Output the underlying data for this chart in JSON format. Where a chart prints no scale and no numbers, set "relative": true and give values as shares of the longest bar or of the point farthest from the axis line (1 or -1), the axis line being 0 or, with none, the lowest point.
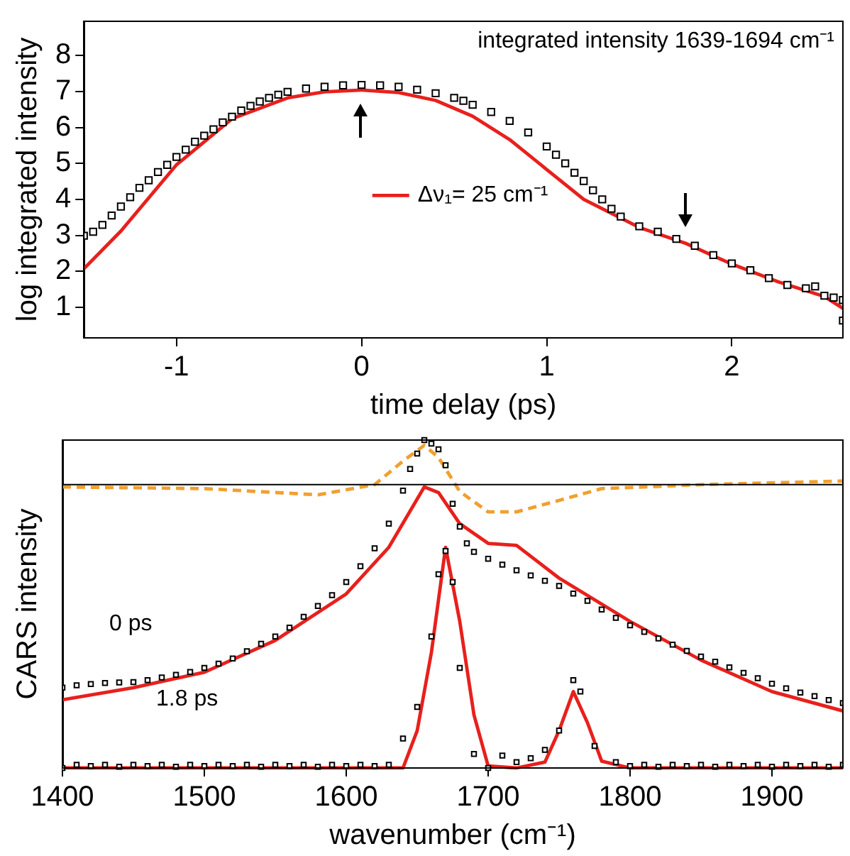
{
  "chart_data": [
    {
      "type": "scatter",
      "xlabel": "time delay (ps)",
      "ylabel": "log integrated intensity",
      "xlim": [
        -1.5,
        2.6
      ],
      "ylim": [
        0.15,
        8.95
      ],
      "xticks": [
        -1,
        0,
        1,
        2
      ],
      "yticks": [
        1,
        2,
        3,
        4,
        5,
        6,
        7,
        8
      ],
      "grid": false,
      "legend": "center",
      "annotations": [
        "integrated intensity 1639-1694 cm⁻¹"
      ],
      "series": [
        {
          "type": "scatter",
          "marker": "square",
          "color": "#000000",
          "x": [
            -1.5,
            -1.45,
            -1.4,
            -1.35,
            -1.3,
            -1.25,
            -1.2,
            -1.15,
            -1.1,
            -1.05,
            -1.0,
            -0.95,
            -0.9,
            -0.85,
            -0.8,
            -0.75,
            -0.7,
            -0.65,
            -0.6,
            -0.55,
            -0.5,
            -0.45,
            -0.4,
            -0.3,
            -0.2,
            -0.1,
            0,
            0.1,
            0.2,
            0.3,
            0.4,
            0.5,
            0.55,
            0.6,
            0.7,
            0.8,
            0.9,
            1.0,
            1.05,
            1.1,
            1.15,
            1.2,
            1.25,
            1.3,
            1.35,
            1.4,
            1.5,
            1.6,
            1.7,
            1.8,
            1.9,
            2.0,
            2.1,
            2.2,
            2.3,
            2.4,
            2.45,
            2.5,
            2.55,
            2.6,
            2.6
          ],
          "values": [
            2.99,
            3.1,
            3.29,
            3.55,
            3.8,
            4.06,
            4.32,
            4.53,
            4.76,
            4.96,
            5.18,
            5.38,
            5.6,
            5.77,
            5.95,
            6.14,
            6.3,
            6.47,
            6.6,
            6.72,
            6.82,
            6.91,
            6.99,
            7.08,
            7.13,
            7.17,
            7.18,
            7.17,
            7.13,
            7.05,
            6.95,
            6.82,
            6.74,
            6.63,
            6.43,
            6.18,
            5.86,
            5.47,
            5.24,
            5.0,
            4.74,
            4.51,
            4.25,
            4.0,
            3.74,
            3.52,
            3.25,
            3.1,
            2.9,
            2.71,
            2.45,
            2.22,
            2.03,
            1.81,
            1.62,
            1.53,
            1.58,
            1.32,
            1.27,
            1.2,
            0.63
          ]
        },
        {
          "type": "line",
          "marker": "none",
          "name": "Δν₁= 25 cm⁻¹",
          "color": "#e8201c",
          "x": [
            -1.5,
            -1.3,
            -1.0,
            -0.7,
            -0.4,
            -0.2,
            0,
            0.2,
            0.4,
            0.6,
            0.8,
            1.0,
            1.2,
            1.35,
            1.5,
            1.75,
            2.0,
            2.25,
            2.5,
            2.6
          ],
          "values": [
            2.07,
            3.12,
            4.96,
            6.24,
            6.82,
            6.99,
            7.04,
            6.97,
            6.75,
            6.31,
            5.66,
            4.83,
            4.0,
            3.61,
            3.22,
            2.78,
            2.2,
            1.71,
            1.3,
            0.97
          ]
        }
      ]
    },
    {
      "type": "scatter",
      "xlabel": "wavenumber (cm⁻¹)",
      "ylabel": "CARS intensity",
      "relative": true,
      "xlim": [
        1400,
        1950
      ],
      "xticks": [
        1400,
        1500,
        1600,
        1700,
        1800,
        1900
      ],
      "grid": false,
      "annotations": [
        "0 ps",
        "1.8 ps"
      ],
      "series": [
        {
          "type": "scatter",
          "marker": "square",
          "color": "#000000",
          "x": [
            1400,
            1410,
            1420,
            1430,
            1440,
            1450,
            1460,
            1470,
            1480,
            1490,
            1500,
            1510,
            1520,
            1530,
            1540,
            1550,
            1560,
            1570,
            1580,
            1590,
            1600,
            1610,
            1620,
            1630,
            1640,
            1645,
            1650,
            1655,
            1660,
            1665,
            1670,
            1675,
            1680,
            1685,
            1690,
            1700,
            1710,
            1720,
            1730,
            1740,
            1750,
            1760,
            1770,
            1780,
            1790,
            1800,
            1810,
            1820,
            1830,
            1840,
            1850,
            1860,
            1870,
            1880,
            1890,
            1900,
            1910,
            1920,
            1930,
            1940,
            1950
          ],
          "values": [
            0.245,
            0.252,
            0.256,
            0.259,
            0.261,
            0.262,
            0.268,
            0.276,
            0.284,
            0.293,
            0.305,
            0.318,
            0.334,
            0.356,
            0.379,
            0.401,
            0.428,
            0.461,
            0.494,
            0.527,
            0.567,
            0.615,
            0.67,
            0.745,
            0.846,
            0.912,
            0.959,
            1,
            0.989,
            0.972,
            0.923,
            0.806,
            0.736,
            0.685,
            0.659,
            0.638,
            0.62,
            0.603,
            0.587,
            0.571,
            0.555,
            0.532,
            0.51,
            0.483,
            0.458,
            0.435,
            0.415,
            0.395,
            0.376,
            0.357,
            0.34,
            0.324,
            0.307,
            0.29,
            0.274,
            0.257,
            0.243,
            0.23,
            0.219,
            0.207,
            0.198
          ]
        },
        {
          "type": "line",
          "marker": "none",
          "color": "#e8201c",
          "x": [
            1400,
            1450,
            1500,
            1550,
            1600,
            1630,
            1655,
            1665,
            1680,
            1700,
            1720,
            1750,
            1800,
            1850,
            1900,
            1950
          ],
          "values": [
            0.208,
            0.245,
            0.292,
            0.389,
            0.531,
            0.673,
            0.857,
            0.84,
            0.745,
            0.685,
            0.679,
            0.579,
            0.447,
            0.329,
            0.233,
            0.174
          ]
        },
        {
          "type": "scatter",
          "marker": "square",
          "color": "#000000",
          "x": [
            1400,
            1410,
            1420,
            1430,
            1440,
            1450,
            1460,
            1470,
            1480,
            1490,
            1500,
            1510,
            1520,
            1530,
            1540,
            1550,
            1560,
            1570,
            1580,
            1590,
            1600,
            1610,
            1620,
            1630,
            1640,
            1650,
            1660,
            1665,
            1670,
            1675,
            1680,
            1690,
            1700,
            1710,
            1720,
            1730,
            1740,
            1750,
            1760,
            1765,
            1775,
            1790,
            1800,
            1810,
            1820,
            1830,
            1840,
            1850,
            1860,
            1870,
            1880,
            1890,
            1900,
            1910,
            1920,
            1930,
            1940,
            1950
          ],
          "values": [
            0,
            0.01,
            0.006,
            0.01,
            0.004,
            0.01,
            0.006,
            0.01,
            0.004,
            0.01,
            0.006,
            0.01,
            0.006,
            0.01,
            0.004,
            0.01,
            0.006,
            0.01,
            0.004,
            0.01,
            0.006,
            0.01,
            0.006,
            0.01,
            0.09,
            0.186,
            0.401,
            0.591,
            0.662,
            0.567,
            0.305,
            0.043,
            0,
            0.038,
            0.018,
            0.03,
            0.055,
            0.114,
            0.268,
            0.233,
            0.067,
            0.018,
            0.006,
            0.01,
            0.004,
            0.01,
            0.006,
            0.01,
            0.004,
            0.01,
            0.006,
            0.01,
            0.004,
            0.01,
            0.006,
            0.01,
            0.004,
            0.01
          ]
        },
        {
          "type": "line",
          "marker": "none",
          "color": "#e8201c",
          "x": [
            1400,
            1500,
            1600,
            1640,
            1650,
            1660,
            1670,
            1680,
            1690,
            1700,
            1720,
            1740,
            1750,
            1760,
            1770,
            1780,
            1800,
            1950
          ],
          "values": [
            0,
            0,
            0,
            0,
            0.114,
            0.352,
            0.673,
            0.447,
            0.162,
            0.006,
            0,
            0.018,
            0.114,
            0.233,
            0.138,
            0.021,
            0,
            0
          ]
        },
        {
          "type": "line",
          "marker": "none",
          "color": "#000000",
          "x": [
            1400,
            1950
          ],
          "values": [
            0.864,
            0.864
          ]
        },
        {
          "type": "line",
          "marker": "none",
          "line_style": "dashed",
          "color": "#f0a030",
          "x": [
            1400,
            1500,
            1580,
            1620,
            1640,
            1655,
            1665,
            1680,
            1700,
            1720,
            1750,
            1780,
            1850,
            1950
          ],
          "values": [
            0.857,
            0.852,
            0.833,
            0.864,
            0.936,
            0.984,
            0.947,
            0.843,
            0.781,
            0.781,
            0.816,
            0.852,
            0.864,
            0.875
          ]
        }
      ]
    }
  ]
}
